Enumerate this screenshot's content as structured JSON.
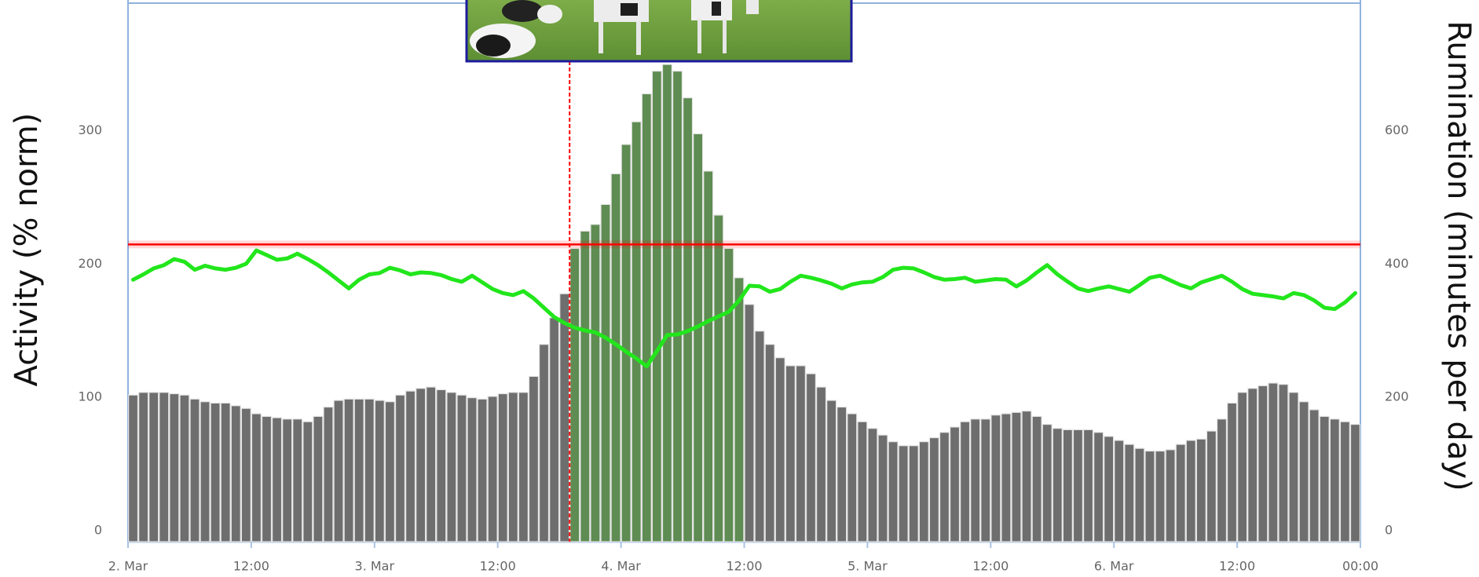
{
  "chart_data": {
    "type": "bar",
    "categories": [
      "2. Mar",
      null,
      null,
      null,
      null,
      null,
      null,
      null,
      null,
      null,
      null,
      null,
      "12:00",
      null,
      null,
      null,
      null,
      null,
      null,
      null,
      null,
      null,
      null,
      null,
      "3. Mar",
      null,
      null,
      null,
      null,
      null,
      null,
      null,
      null,
      null,
      null,
      null,
      "12:00",
      null,
      null,
      null,
      null,
      null,
      null,
      null,
      null,
      null,
      null,
      null,
      "4. Mar",
      null,
      null,
      null,
      null,
      null,
      null,
      null,
      null,
      null,
      null,
      null,
      "12:00",
      null,
      null,
      null,
      null,
      null,
      null,
      null,
      null,
      null,
      null,
      null,
      "5. Mar",
      null,
      null,
      null,
      null,
      null,
      null,
      null,
      null,
      null,
      null,
      null,
      "12:00",
      null,
      null,
      null,
      null,
      null,
      null,
      null,
      null,
      null,
      null,
      null,
      "6. Mar",
      null,
      null,
      null,
      null,
      null,
      null,
      null,
      null,
      null,
      null,
      null,
      "12:00",
      null,
      null,
      null,
      null,
      null,
      null,
      null,
      null,
      null,
      null,
      null,
      "00:00"
    ],
    "series": [
      {
        "type": "bar",
        "axis": "y",
        "values": [
          110,
          112,
          112,
          112,
          111,
          110,
          107,
          105,
          104,
          104,
          102,
          100,
          96,
          94,
          93,
          92,
          92,
          90,
          94,
          101,
          106,
          107,
          107,
          107,
          106,
          105,
          110,
          113,
          115,
          116,
          114,
          112,
          110,
          108,
          107,
          109,
          111,
          112,
          112,
          124,
          148,
          168,
          186,
          220,
          233,
          238,
          253,
          276,
          298,
          315,
          336,
          353,
          358,
          353,
          333,
          306,
          278,
          245,
          220,
          198,
          178,
          158,
          148,
          138,
          132,
          132,
          126,
          116,
          106,
          101,
          96,
          90,
          85,
          80,
          75,
          72,
          72,
          75,
          78,
          82,
          86,
          90,
          92,
          92,
          95,
          96,
          97,
          98,
          94,
          88,
          85,
          84,
          84,
          84,
          82,
          79,
          76,
          73,
          70,
          68,
          68,
          69,
          73,
          76,
          77,
          83,
          92,
          104,
          112,
          115,
          117,
          119,
          118,
          112,
          105,
          99,
          94,
          92,
          90,
          88,
          null
        ],
        "colors": [
          "#6e6e6e",
          "#6e6e6e",
          "#6e6e6e",
          "#6e6e6e",
          "#6e6e6e",
          "#6e6e6e",
          "#6e6e6e",
          "#6e6e6e",
          "#6e6e6e",
          "#6e6e6e",
          "#6e6e6e",
          "#6e6e6e",
          "#6e6e6e",
          "#6e6e6e",
          "#6e6e6e",
          "#6e6e6e",
          "#6e6e6e",
          "#6e6e6e",
          "#6e6e6e",
          "#6e6e6e",
          "#6e6e6e",
          "#6e6e6e",
          "#6e6e6e",
          "#6e6e6e",
          "#6e6e6e",
          "#6e6e6e",
          "#6e6e6e",
          "#6e6e6e",
          "#6e6e6e",
          "#6e6e6e",
          "#6e6e6e",
          "#6e6e6e",
          "#6e6e6e",
          "#6e6e6e",
          "#6e6e6e",
          "#6e6e6e",
          "#6e6e6e",
          "#6e6e6e",
          "#6e6e6e",
          "#6e6e6e",
          "#6e6e6e",
          "#6e6e6e",
          "#6e6e6e",
          "#5e8c52",
          "#5e8c52",
          "#5e8c52",
          "#5e8c52",
          "#5e8c52",
          "#5e8c52",
          "#5e8c52",
          "#5e8c52",
          "#5e8c52",
          "#5e8c52",
          "#5e8c52",
          "#5e8c52",
          "#5e8c52",
          "#5e8c52",
          "#5e8c52",
          "#5e8c52",
          "#5e8c52",
          "#6e6e6e",
          "#6e6e6e",
          "#6e6e6e",
          "#6e6e6e",
          "#6e6e6e",
          "#6e6e6e",
          "#6e6e6e",
          "#6e6e6e",
          "#6e6e6e",
          "#6e6e6e",
          "#6e6e6e",
          "#6e6e6e",
          "#6e6e6e",
          "#6e6e6e",
          "#6e6e6e",
          "#6e6e6e",
          "#6e6e6e",
          "#6e6e6e",
          "#6e6e6e",
          "#6e6e6e",
          "#6e6e6e",
          "#6e6e6e",
          "#6e6e6e",
          "#6e6e6e",
          "#6e6e6e",
          "#6e6e6e",
          "#6e6e6e",
          "#6e6e6e",
          "#6e6e6e",
          "#6e6e6e",
          "#6e6e6e",
          "#6e6e6e",
          "#6e6e6e",
          "#6e6e6e",
          "#6e6e6e",
          "#6e6e6e",
          "#6e6e6e",
          "#6e6e6e",
          "#6e6e6e",
          "#6e6e6e",
          "#6e6e6e",
          "#6e6e6e",
          "#6e6e6e",
          "#6e6e6e",
          "#6e6e6e",
          "#6e6e6e",
          "#6e6e6e",
          "#6e6e6e",
          "#6e6e6e",
          "#6e6e6e",
          "#6e6e6e",
          "#6e6e6e",
          "#6e6e6e",
          "#6e6e6e",
          "#6e6e6e",
          "#6e6e6e",
          "#6e6e6e",
          "#6e6e6e",
          "#6e6e6e",
          "#6e6e6e",
          null
        ]
      },
      {
        "type": "line",
        "axis": "y2",
        "color": "#22e61c",
        "values": [
          393,
          401,
          410,
          415,
          424,
          420,
          408,
          414,
          410,
          408,
          411,
          417,
          437,
          430,
          423,
          425,
          432,
          424,
          415,
          404,
          392,
          380,
          393,
          401,
          403,
          411,
          407,
          401,
          404,
          403,
          400,
          394,
          390,
          399,
          389,
          379,
          373,
          370,
          376,
          365,
          351,
          337,
          328,
          321,
          317,
          314,
          306,
          296,
          285,
          275,
          263,
          286,
          310,
          311,
          316,
          323,
          331,
          338,
          345,
          362,
          384,
          383,
          375,
          379,
          390,
          399,
          396,
          392,
          387,
          380,
          386,
          389,
          390,
          397,
          408,
          411,
          410,
          404,
          397,
          393,
          394,
          396,
          390,
          392,
          394,
          393,
          383,
          392,
          404,
          415,
          401,
          390,
          380,
          376,
          380,
          383,
          379,
          375,
          385,
          396,
          399,
          392,
          385,
          380,
          389,
          394,
          399,
          390,
          379,
          372,
          370,
          368,
          365,
          373,
          370,
          362,
          351,
          349,
          359,
          373,
          null
        ]
      }
    ],
    "ylabel": "Activity (% norm)",
    "y2label": "Rumination (minutes per day)",
    "ylim": [
      0,
      404
    ],
    "yticks": [
      0,
      100,
      200,
      300
    ],
    "y2lim": [
      0,
      808
    ],
    "y2ticks": [
      0,
      200,
      400,
      600
    ],
    "threshold": {
      "value": 223,
      "color": "#ff0000"
    }
  }
}
